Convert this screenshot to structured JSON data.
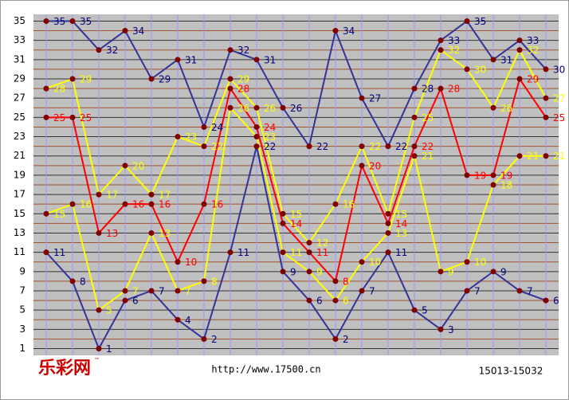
{
  "chart_data": {
    "type": "line",
    "brand": "乐彩网",
    "brand_mark": "™",
    "site": "http://www.17500.cn",
    "range_label": "15013-15032",
    "categories": [
      null,
      null,
      null,
      null,
      null,
      null,
      null,
      null,
      null,
      null,
      null,
      null,
      null,
      null,
      null,
      null,
      null,
      null,
      null,
      null
    ],
    "series": [
      {
        "color": "#333399",
        "label_color": "#000080",
        "values": [
          35,
          35,
          32,
          34,
          29,
          31,
          24,
          32,
          31,
          26,
          22,
          34,
          27,
          22,
          28,
          33,
          35,
          31,
          33,
          30
        ]
      },
      {
        "color": "#ff0000",
        "label_color": "#ff0000",
        "values": [
          25,
          25,
          13,
          16,
          16,
          10,
          16,
          28,
          24,
          14,
          11,
          8,
          20,
          14,
          22,
          28,
          19,
          19,
          29,
          25
        ]
      },
      {
        "color": "#ffff00",
        "label_color": "#ffff00",
        "values": [
          28,
          29,
          17,
          20,
          17,
          23,
          22,
          29,
          26,
          15,
          12,
          16,
          22,
          15,
          25,
          32,
          30,
          26,
          32,
          27
        ]
      },
      {
        "color": "#ffff00",
        "label_color": "#ffff00",
        "values": [
          15,
          16,
          5,
          7,
          13,
          7,
          8,
          26,
          23,
          11,
          9,
          6,
          10,
          13,
          21,
          9,
          10,
          18,
          21,
          21
        ]
      },
      {
        "color": "#333399",
        "label_color": "#000080",
        "values": [
          11,
          8,
          1,
          6,
          7,
          4,
          2,
          11,
          22,
          9,
          6,
          2,
          7,
          11,
          5,
          3,
          7,
          9,
          7,
          6
        ]
      }
    ],
    "marker_color": "#800000",
    "ylim": [
      0.3,
      35.7
    ],
    "yticks": [
      1,
      3,
      5,
      7,
      9,
      11,
      13,
      15,
      17,
      19,
      21,
      23,
      25,
      27,
      29,
      31,
      33,
      35
    ],
    "grid": true
  }
}
